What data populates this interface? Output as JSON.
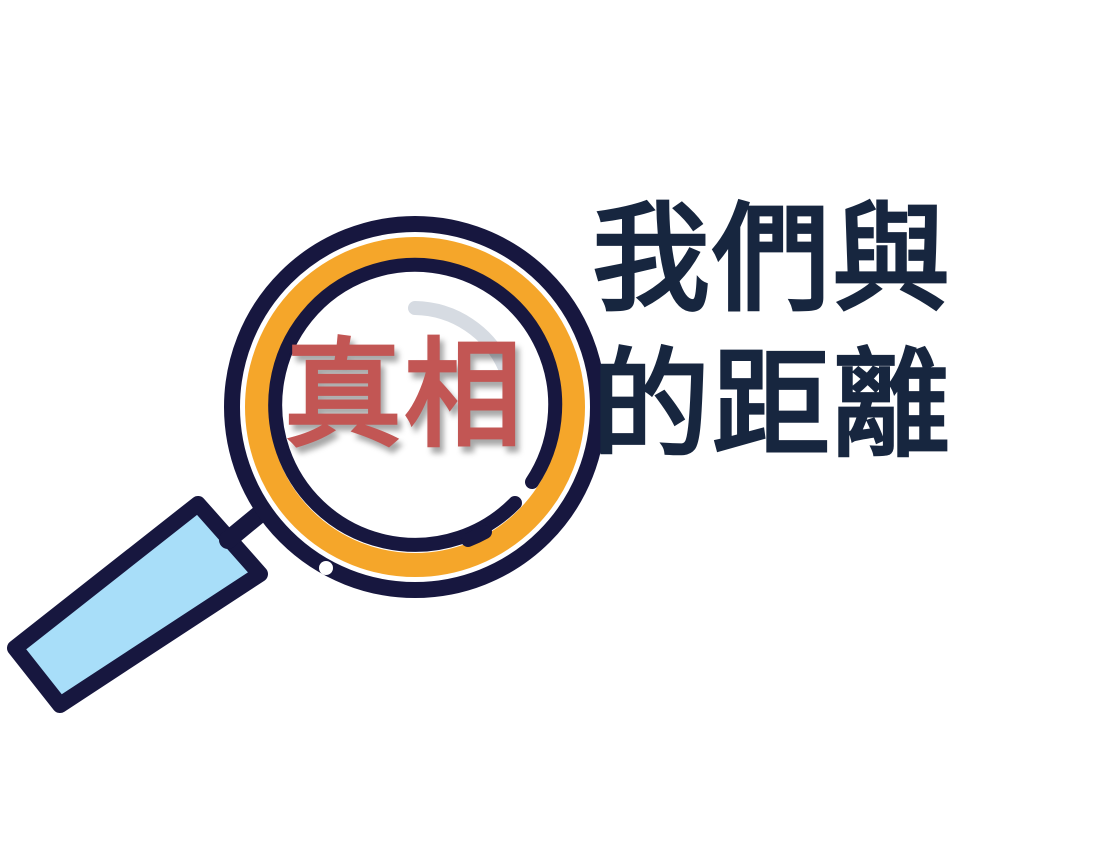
{
  "headline": {
    "line1": "我們與",
    "line2": "的距離",
    "highlight": "真相"
  },
  "colors": {
    "text_dark": "#17263f",
    "highlight_red": "#c25654",
    "ring_orange": "#f5a62a",
    "outline_navy": "#17173f",
    "handle_blue": "#a8def9",
    "glare_gray": "#d6dbe2"
  },
  "icons": {
    "magnifier": "magnifying-glass-icon"
  }
}
